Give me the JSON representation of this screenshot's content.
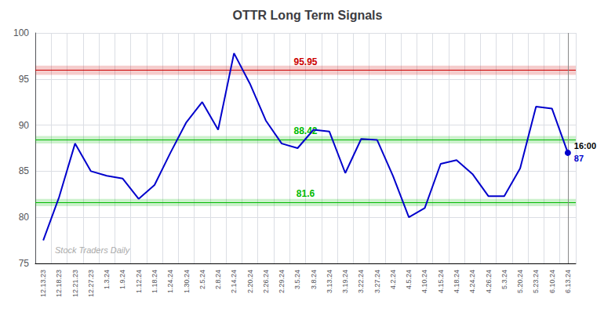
{
  "chart_data": {
    "type": "line",
    "title": "OTTR Long Term Signals",
    "categories": [
      "12.13.23",
      "12.18.23",
      "12.21.23",
      "12.27.23",
      "1.3.24",
      "1.9.24",
      "1.12.24",
      "1.18.24",
      "1.24.24",
      "1.30.24",
      "2.5.24",
      "2.8.24",
      "2.14.24",
      "2.20.24",
      "2.26.24",
      "2.29.24",
      "3.5.24",
      "3.8.24",
      "3.13.24",
      "3.19.24",
      "3.22.24",
      "3.27.24",
      "4.2.24",
      "4.5.24",
      "4.10.24",
      "4.15.24",
      "4.18.24",
      "4.24.24",
      "4.26.24",
      "5.3.24",
      "5.20.24",
      "5.23.24",
      "6.10.24",
      "6.13.24"
    ],
    "values": [
      77.5,
      82.2,
      88.0,
      85.0,
      84.5,
      84.2,
      82.0,
      83.5,
      87.0,
      90.3,
      92.5,
      89.5,
      97.8,
      94.5,
      90.5,
      88.0,
      87.5,
      89.5,
      89.3,
      84.8,
      88.5,
      88.4,
      84.5,
      80.0,
      81.0,
      85.8,
      86.2,
      84.7,
      82.3,
      82.3,
      85.3,
      92.0,
      91.8,
      87.0
    ],
    "color": "#0000cc",
    "ylim": [
      75,
      100
    ],
    "yticks": [
      75,
      80,
      85,
      90,
      95,
      100
    ],
    "grid": true,
    "reference_lines": [
      {
        "value": 95.95,
        "label": "95.95",
        "color": "#cc0000",
        "band": [
          95.45,
          96.45
        ]
      },
      {
        "value": 88.42,
        "label": "88.42",
        "color": "#00bb00",
        "band": [
          88.02,
          88.82
        ]
      },
      {
        "value": 81.6,
        "label": "81.6",
        "color": "#00bb00",
        "band": [
          81.2,
          82.0
        ]
      }
    ],
    "annotations": [
      {
        "text": "16:00",
        "category": "6.13.24"
      },
      {
        "text": "87",
        "category": "6.13.24",
        "value": 87
      },
      {
        "text": "Stock Traders Daily"
      }
    ]
  }
}
